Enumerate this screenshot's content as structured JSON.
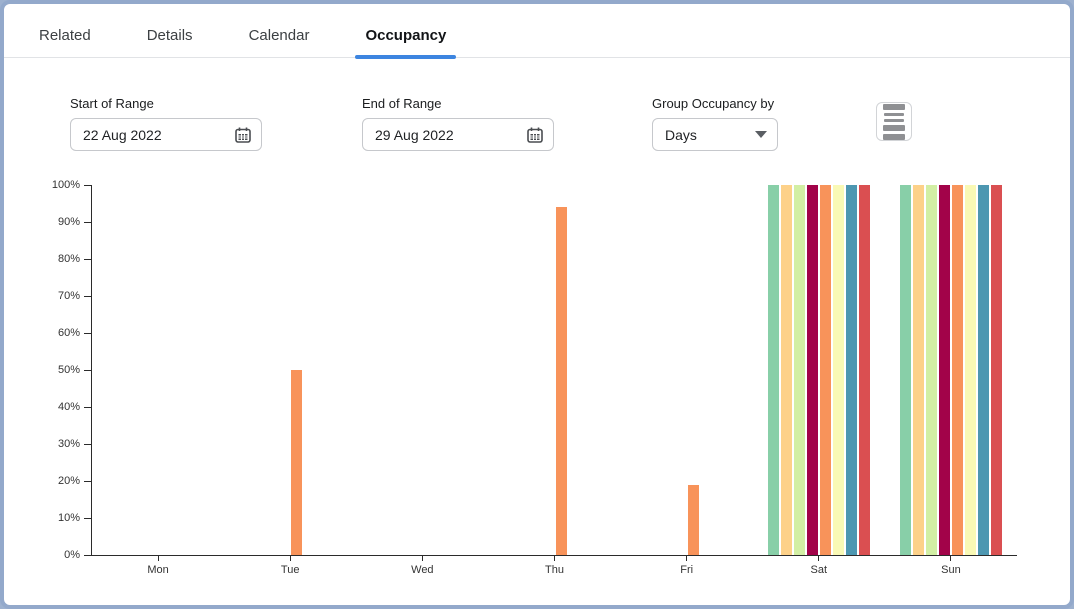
{
  "tabs": [
    {
      "label": "Related",
      "active": false
    },
    {
      "label": "Details",
      "active": false
    },
    {
      "label": "Calendar",
      "active": false
    },
    {
      "label": "Occupancy",
      "active": true
    }
  ],
  "controls": {
    "start_label": "Start of Range",
    "start_value": "22 Aug 2022",
    "end_label": "End of Range",
    "end_value": "29 Aug 2022",
    "group_label": "Group Occupancy by",
    "group_value": "Days"
  },
  "colors": {
    "accent": "#3d85e0",
    "axis": "#2b2b2b",
    "window_border": "#93a9cb"
  },
  "chart_data": {
    "type": "bar",
    "title": "",
    "xlabel": "",
    "ylabel": "",
    "ylim": [
      0,
      100
    ],
    "grid": false,
    "legend": "none",
    "categories": [
      "Mon",
      "Tue",
      "Wed",
      "Thu",
      "Fri",
      "Sat",
      "Sun"
    ],
    "yticks": [
      {
        "value": 0,
        "label": "0%"
      },
      {
        "value": 10,
        "label": "10%"
      },
      {
        "value": 20,
        "label": "20%"
      },
      {
        "value": 30,
        "label": "30%"
      },
      {
        "value": 40,
        "label": "40%"
      },
      {
        "value": 50,
        "label": "50%"
      },
      {
        "value": 60,
        "label": "60%"
      },
      {
        "value": 70,
        "label": "70%"
      },
      {
        "value": 80,
        "label": "80%"
      },
      {
        "value": 90,
        "label": "90%"
      },
      {
        "value": 100,
        "label": "100%"
      }
    ],
    "series": [
      {
        "name": "series-1-green",
        "color": "#88cfa8",
        "values": [
          0,
          0,
          0,
          0,
          0,
          100,
          100
        ]
      },
      {
        "name": "series-2-peach",
        "color": "#fdd189",
        "values": [
          0,
          0,
          0,
          0,
          0,
          100,
          100
        ]
      },
      {
        "name": "series-3-lightgreen",
        "color": "#d2efa4",
        "values": [
          0,
          0,
          0,
          0,
          0,
          100,
          100
        ]
      },
      {
        "name": "series-4-crimson",
        "color": "#a20349",
        "values": [
          0,
          0,
          0,
          0,
          0,
          100,
          100
        ]
      },
      {
        "name": "series-5-orange",
        "color": "#f8935a",
        "values": [
          0,
          50,
          0,
          94,
          19,
          100,
          100
        ]
      },
      {
        "name": "series-6-paleyellow",
        "color": "#f9f9b5",
        "values": [
          0,
          0,
          0,
          0,
          0,
          100,
          100
        ]
      },
      {
        "name": "series-7-blue",
        "color": "#4d97b1",
        "values": [
          0,
          0,
          0,
          0,
          0,
          100,
          100
        ]
      },
      {
        "name": "series-8-red",
        "color": "#da4f51",
        "values": [
          0,
          0,
          0,
          0,
          0,
          100,
          100
        ]
      }
    ]
  }
}
